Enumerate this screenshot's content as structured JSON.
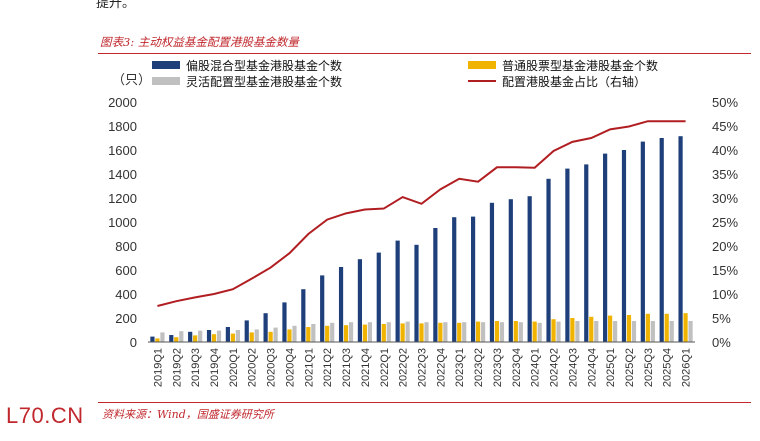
{
  "header": {
    "top_text": "提升。",
    "figure_title": "图表3: 主动权益基金配置港股基金数量",
    "source": "资料来源：Wind，国盛证券研究所",
    "watermark": "L70.CN"
  },
  "chart_data": {
    "type": "bar",
    "title": "图表3: 主动权益基金配置港股基金数量",
    "ylabel": "（只）",
    "ylim": [
      0,
      2000
    ],
    "y_ticks": [
      0,
      200,
      400,
      600,
      800,
      1000,
      1200,
      1400,
      1600,
      1800,
      2000
    ],
    "y2lim": [
      0,
      0.5
    ],
    "y2_ticks": [
      "0%",
      "5%",
      "10%",
      "15%",
      "20%",
      "25%",
      "30%",
      "35%",
      "40%",
      "45%",
      "50%"
    ],
    "legend_position": "top",
    "categories": [
      "2019Q1",
      "2019Q2",
      "2019Q3",
      "2019Q4",
      "2020Q1",
      "2020Q2",
      "2020Q3",
      "2020Q4",
      "2021Q1",
      "2021Q2",
      "2021Q3",
      "2021Q4",
      "2022Q1",
      "2022Q2",
      "2022Q3",
      "2022Q4",
      "2023Q1",
      "2023Q2",
      "2023Q3",
      "2023Q4",
      "2024Q1",
      "2024Q2",
      "2024Q3",
      "2024Q4",
      "2025Q1",
      "2025Q2",
      "2025Q3",
      "2025Q4",
      "2026Q1"
    ],
    "series": [
      {
        "name": "偏股混合型基金港股基金个数",
        "type": "bar",
        "color": "#1f3f7a",
        "values": [
          45,
          58,
          85,
          100,
          125,
          180,
          240,
          330,
          440,
          555,
          625,
          690,
          745,
          845,
          810,
          950,
          1040,
          1045,
          1160,
          1190,
          1215,
          1360,
          1445,
          1480,
          1570,
          1600,
          1670,
          1700,
          1715
        ]
      },
      {
        "name": "普通股票型基金港股基金个数",
        "type": "bar",
        "color": "#f0b400",
        "values": [
          30,
          40,
          55,
          65,
          70,
          80,
          85,
          105,
          125,
          135,
          140,
          145,
          150,
          155,
          155,
          160,
          160,
          170,
          175,
          175,
          170,
          190,
          200,
          210,
          220,
          225,
          235,
          235,
          240
        ]
      },
      {
        "name": "灵活配置型基金港股基金个数",
        "type": "bar",
        "color": "#c0c0c0",
        "values": [
          80,
          90,
          95,
          95,
          100,
          105,
          120,
          135,
          150,
          160,
          165,
          165,
          165,
          170,
          165,
          165,
          165,
          165,
          165,
          165,
          160,
          170,
          175,
          175,
          175,
          175,
          175,
          175,
          175
        ]
      },
      {
        "name": "配置港股基金占比（右轴）",
        "type": "line",
        "axis": "right",
        "color": "#b11e22",
        "values": [
          0.075,
          0.085,
          0.093,
          0.1,
          0.11,
          0.132,
          0.155,
          0.185,
          0.225,
          0.255,
          0.268,
          0.276,
          0.278,
          0.302,
          0.288,
          0.318,
          0.34,
          0.334,
          0.364,
          0.364,
          0.363,
          0.398,
          0.417,
          0.425,
          0.443,
          0.449,
          0.46,
          0.46,
          0.46
        ]
      }
    ]
  }
}
